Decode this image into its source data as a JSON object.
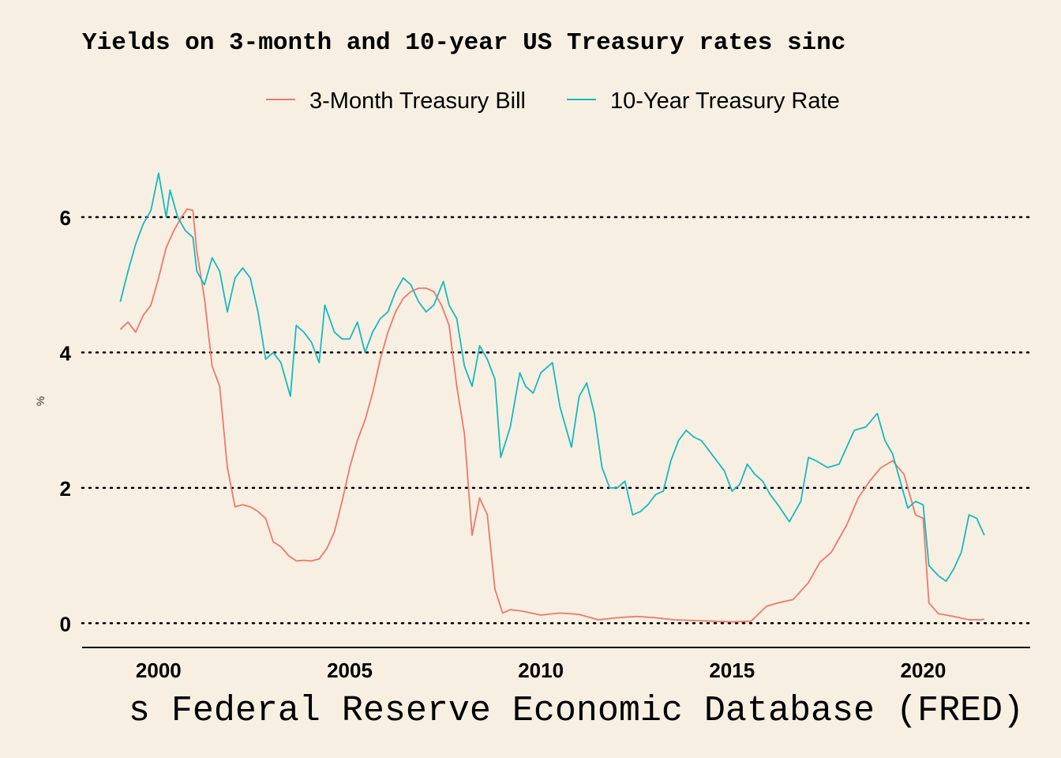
{
  "chart_data": {
    "type": "line",
    "title": "Yields on 3-month and 10-year US Treasury rates sinc",
    "caption": "s Federal Reserve Economic Database (FRED)",
    "xlabel": "",
    "ylabel": "%",
    "xlim": [
      1998,
      2022.8
    ],
    "ylim": [
      -0.3,
      6.7
    ],
    "x_ticks": [
      2000,
      2005,
      2010,
      2015,
      2020
    ],
    "y_ticks": [
      0,
      2,
      4,
      6
    ],
    "grid": "horizontal dotted",
    "legend_position": "top",
    "series": [
      {
        "name": "3-Month Treasury Bill",
        "color": "#ef776c",
        "points": [
          [
            1999.0,
            4.34
          ],
          [
            1999.2,
            4.45
          ],
          [
            1999.4,
            4.3
          ],
          [
            1999.6,
            4.55
          ],
          [
            1999.8,
            4.7
          ],
          [
            2000.0,
            5.1
          ],
          [
            2000.2,
            5.55
          ],
          [
            2000.4,
            5.8
          ],
          [
            2000.6,
            6.0
          ],
          [
            2000.75,
            6.12
          ],
          [
            2000.9,
            6.1
          ],
          [
            2001.0,
            5.5
          ],
          [
            2001.2,
            4.8
          ],
          [
            2001.4,
            3.8
          ],
          [
            2001.6,
            3.5
          ],
          [
            2001.8,
            2.3
          ],
          [
            2002.0,
            1.72
          ],
          [
            2002.2,
            1.75
          ],
          [
            2002.4,
            1.72
          ],
          [
            2002.6,
            1.65
          ],
          [
            2002.8,
            1.55
          ],
          [
            2003.0,
            1.2
          ],
          [
            2003.2,
            1.13
          ],
          [
            2003.4,
            1.0
          ],
          [
            2003.6,
            0.92
          ],
          [
            2003.8,
            0.93
          ],
          [
            2004.0,
            0.92
          ],
          [
            2004.2,
            0.95
          ],
          [
            2004.4,
            1.1
          ],
          [
            2004.6,
            1.35
          ],
          [
            2004.8,
            1.8
          ],
          [
            2005.0,
            2.3
          ],
          [
            2005.2,
            2.7
          ],
          [
            2005.4,
            3.0
          ],
          [
            2005.6,
            3.4
          ],
          [
            2005.8,
            3.9
          ],
          [
            2006.0,
            4.3
          ],
          [
            2006.2,
            4.6
          ],
          [
            2006.4,
            4.8
          ],
          [
            2006.6,
            4.9
          ],
          [
            2006.8,
            4.95
          ],
          [
            2007.0,
            4.95
          ],
          [
            2007.2,
            4.9
          ],
          [
            2007.4,
            4.7
          ],
          [
            2007.6,
            4.4
          ],
          [
            2007.8,
            3.5
          ],
          [
            2008.0,
            2.8
          ],
          [
            2008.2,
            1.3
          ],
          [
            2008.4,
            1.85
          ],
          [
            2008.6,
            1.6
          ],
          [
            2008.8,
            0.5
          ],
          [
            2009.0,
            0.15
          ],
          [
            2009.2,
            0.2
          ],
          [
            2009.5,
            0.18
          ],
          [
            2010.0,
            0.12
          ],
          [
            2010.5,
            0.15
          ],
          [
            2011.0,
            0.13
          ],
          [
            2011.5,
            0.05
          ],
          [
            2012.0,
            0.08
          ],
          [
            2012.5,
            0.1
          ],
          [
            2013.0,
            0.08
          ],
          [
            2013.5,
            0.05
          ],
          [
            2014.0,
            0.04
          ],
          [
            2014.5,
            0.03
          ],
          [
            2015.0,
            0.02
          ],
          [
            2015.5,
            0.03
          ],
          [
            2015.9,
            0.25
          ],
          [
            2016.2,
            0.3
          ],
          [
            2016.6,
            0.35
          ],
          [
            2017.0,
            0.6
          ],
          [
            2017.3,
            0.9
          ],
          [
            2017.6,
            1.05
          ],
          [
            2018.0,
            1.45
          ],
          [
            2018.3,
            1.85
          ],
          [
            2018.6,
            2.1
          ],
          [
            2018.9,
            2.3
          ],
          [
            2019.2,
            2.4
          ],
          [
            2019.5,
            2.2
          ],
          [
            2019.8,
            1.6
          ],
          [
            2020.0,
            1.55
          ],
          [
            2020.15,
            0.3
          ],
          [
            2020.4,
            0.14
          ],
          [
            2020.8,
            0.1
          ],
          [
            2021.2,
            0.05
          ],
          [
            2021.5,
            0.05
          ],
          [
            2021.6,
            0.06
          ]
        ]
      },
      {
        "name": "10-Year Treasury Rate",
        "color": "#17b8c4",
        "points": [
          [
            1999.0,
            4.75
          ],
          [
            1999.2,
            5.2
          ],
          [
            1999.4,
            5.6
          ],
          [
            1999.6,
            5.9
          ],
          [
            1999.8,
            6.1
          ],
          [
            2000.0,
            6.65
          ],
          [
            2000.2,
            6.0
          ],
          [
            2000.3,
            6.4
          ],
          [
            2000.5,
            6.0
          ],
          [
            2000.7,
            5.8
          ],
          [
            2000.9,
            5.7
          ],
          [
            2001.0,
            5.2
          ],
          [
            2001.2,
            5.0
          ],
          [
            2001.4,
            5.4
          ],
          [
            2001.6,
            5.2
          ],
          [
            2001.8,
            4.6
          ],
          [
            2002.0,
            5.1
          ],
          [
            2002.2,
            5.25
          ],
          [
            2002.4,
            5.1
          ],
          [
            2002.6,
            4.6
          ],
          [
            2002.8,
            3.9
          ],
          [
            2003.0,
            4.0
          ],
          [
            2003.2,
            3.85
          ],
          [
            2003.45,
            3.35
          ],
          [
            2003.6,
            4.4
          ],
          [
            2003.8,
            4.3
          ],
          [
            2004.0,
            4.15
          ],
          [
            2004.2,
            3.85
          ],
          [
            2004.35,
            4.7
          ],
          [
            2004.6,
            4.3
          ],
          [
            2004.8,
            4.2
          ],
          [
            2005.0,
            4.2
          ],
          [
            2005.2,
            4.45
          ],
          [
            2005.4,
            4.0
          ],
          [
            2005.6,
            4.3
          ],
          [
            2005.8,
            4.5
          ],
          [
            2006.0,
            4.6
          ],
          [
            2006.2,
            4.9
          ],
          [
            2006.4,
            5.1
          ],
          [
            2006.6,
            5.0
          ],
          [
            2006.8,
            4.75
          ],
          [
            2007.0,
            4.6
          ],
          [
            2007.2,
            4.7
          ],
          [
            2007.45,
            5.05
          ],
          [
            2007.6,
            4.7
          ],
          [
            2007.8,
            4.5
          ],
          [
            2008.0,
            3.8
          ],
          [
            2008.2,
            3.5
          ],
          [
            2008.4,
            4.1
          ],
          [
            2008.6,
            3.9
          ],
          [
            2008.8,
            3.6
          ],
          [
            2008.95,
            2.45
          ],
          [
            2009.2,
            2.9
          ],
          [
            2009.45,
            3.7
          ],
          [
            2009.6,
            3.5
          ],
          [
            2009.8,
            3.4
          ],
          [
            2010.0,
            3.7
          ],
          [
            2010.3,
            3.85
          ],
          [
            2010.5,
            3.2
          ],
          [
            2010.8,
            2.6
          ],
          [
            2011.0,
            3.35
          ],
          [
            2011.2,
            3.55
          ],
          [
            2011.4,
            3.1
          ],
          [
            2011.6,
            2.3
          ],
          [
            2011.8,
            2.0
          ],
          [
            2012.0,
            2.0
          ],
          [
            2012.2,
            2.1
          ],
          [
            2012.4,
            1.6
          ],
          [
            2012.6,
            1.65
          ],
          [
            2012.8,
            1.75
          ],
          [
            2013.0,
            1.9
          ],
          [
            2013.2,
            1.95
          ],
          [
            2013.4,
            2.4
          ],
          [
            2013.6,
            2.7
          ],
          [
            2013.8,
            2.85
          ],
          [
            2014.0,
            2.75
          ],
          [
            2014.2,
            2.7
          ],
          [
            2014.4,
            2.55
          ],
          [
            2014.6,
            2.4
          ],
          [
            2014.8,
            2.25
          ],
          [
            2015.0,
            1.95
          ],
          [
            2015.2,
            2.05
          ],
          [
            2015.4,
            2.35
          ],
          [
            2015.6,
            2.2
          ],
          [
            2015.8,
            2.1
          ],
          [
            2016.0,
            1.9
          ],
          [
            2016.2,
            1.75
          ],
          [
            2016.5,
            1.5
          ],
          [
            2016.8,
            1.8
          ],
          [
            2017.0,
            2.45
          ],
          [
            2017.2,
            2.4
          ],
          [
            2017.5,
            2.3
          ],
          [
            2017.8,
            2.35
          ],
          [
            2018.0,
            2.6
          ],
          [
            2018.2,
            2.85
          ],
          [
            2018.5,
            2.9
          ],
          [
            2018.8,
            3.1
          ],
          [
            2019.0,
            2.7
          ],
          [
            2019.2,
            2.5
          ],
          [
            2019.4,
            2.1
          ],
          [
            2019.6,
            1.7
          ],
          [
            2019.8,
            1.8
          ],
          [
            2020.0,
            1.75
          ],
          [
            2020.15,
            0.85
          ],
          [
            2020.4,
            0.7
          ],
          [
            2020.6,
            0.62
          ],
          [
            2020.8,
            0.8
          ],
          [
            2021.0,
            1.05
          ],
          [
            2021.2,
            1.6
          ],
          [
            2021.4,
            1.55
          ],
          [
            2021.6,
            1.3
          ]
        ]
      }
    ]
  }
}
